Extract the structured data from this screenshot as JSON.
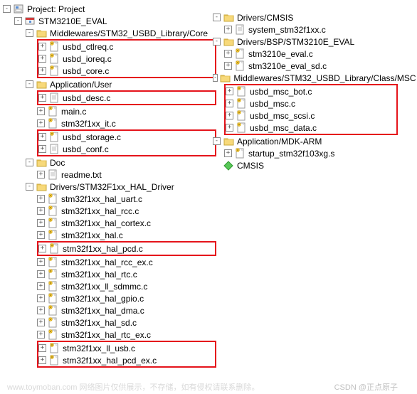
{
  "root": {
    "label": "Project: Project",
    "target": "STM3210E_EVAL"
  },
  "left_groups": [
    {
      "label": "Middlewares/STM32_USBD_Library/Core",
      "files": [
        "usbd_ctlreq.c",
        "usbd_ioreq.c",
        "usbd_core.c"
      ],
      "highlight_files": true
    },
    {
      "label": "Application/User",
      "files_sections": [
        {
          "files": [
            "usbd_desc.c"
          ],
          "highlight": true,
          "icons": [
            "file"
          ]
        },
        {
          "files": [
            "main.c",
            "stm32f1xx_it.c"
          ],
          "highlight": false,
          "icons": [
            "cfile",
            "cfile"
          ]
        },
        {
          "files": [
            "usbd_storage.c",
            "usbd_conf.c"
          ],
          "highlight": true,
          "icons": [
            "cfile",
            "file"
          ]
        }
      ]
    },
    {
      "label": "Doc",
      "files": [
        "readme.txt"
      ],
      "file_icons": [
        "file"
      ]
    },
    {
      "label": "Drivers/STM32F1xx_HAL_Driver",
      "files_sections": [
        {
          "files": [
            "stm32f1xx_hal_uart.c",
            "stm32f1xx_hal_rcc.c",
            "stm32f1xx_hal_cortex.c",
            "stm32f1xx_hal.c"
          ],
          "highlight": false
        },
        {
          "files": [
            "stm32f1xx_hal_pcd.c"
          ],
          "highlight": true
        },
        {
          "files": [
            "stm32f1xx_hal_rcc_ex.c",
            "stm32f1xx_hal_rtc.c",
            "stm32f1xx_ll_sdmmc.c",
            "stm32f1xx_hal_gpio.c",
            "stm32f1xx_hal_dma.c",
            "stm32f1xx_hal_sd.c",
            "stm32f1xx_hal_rtc_ex.c"
          ],
          "highlight": false
        },
        {
          "files": [
            "stm32f1xx_ll_usb.c",
            "stm32f1xx_hal_pcd_ex.c"
          ],
          "highlight": true
        }
      ]
    }
  ],
  "right_groups": [
    {
      "label": "Drivers/CMSIS",
      "files": [
        "system_stm32f1xx.c"
      ],
      "file_icons": [
        "file"
      ]
    },
    {
      "label": "Drivers/BSP/STM3210E_EVAL",
      "files": [
        "stm3210e_eval.c",
        "stm3210e_eval_sd.c"
      ]
    },
    {
      "label": "Middlewares/STM32_USBD_Library/Class/MSC",
      "files": [
        "usbd_msc_bot.c",
        "usbd_msc.c",
        "usbd_msc_scsi.c",
        "usbd_msc_data.c"
      ],
      "highlight_files": true
    },
    {
      "label": "Application/MDK-ARM",
      "files": [
        "startup_stm32f103xg.s"
      ]
    },
    {
      "label": "CMSIS",
      "files": [],
      "component": true
    }
  ],
  "footer": {
    "left": "www.toymoban.com 网络图片仅供展示，不存储，如有侵权请联系删除。",
    "right": "CSDN @正点原子"
  }
}
